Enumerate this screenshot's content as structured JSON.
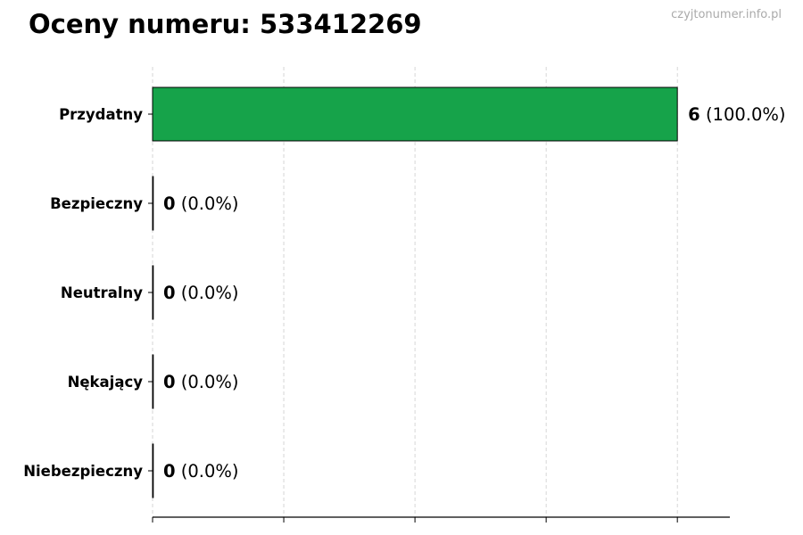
{
  "chart_data": {
    "type": "bar",
    "orientation": "horizontal",
    "title": "Oceny numeru: 533412269",
    "watermark": "czyjtonumer.info.pl",
    "categories": [
      "Przydatny",
      "Bezpieczny",
      "Neutralny",
      "Nękający",
      "Niebezpieczny"
    ],
    "values": [
      6,
      0,
      0,
      0,
      0
    ],
    "data_labels": [
      {
        "count": "6",
        "percent": "(100.0%)"
      },
      {
        "count": "0",
        "percent": "(0.0%)"
      },
      {
        "count": "0",
        "percent": "(0.0%)"
      },
      {
        "count": "0",
        "percent": "(0.0%)"
      },
      {
        "count": "0",
        "percent": "(0.0%)"
      }
    ],
    "xlim": [
      0,
      6.6
    ],
    "xticks": [
      0,
      1.5,
      3,
      4.5,
      6
    ],
    "xtick_labels_shown": false,
    "grid": "x dashed",
    "bar_color": "#16a34a",
    "xlabel": "",
    "ylabel": ""
  }
}
